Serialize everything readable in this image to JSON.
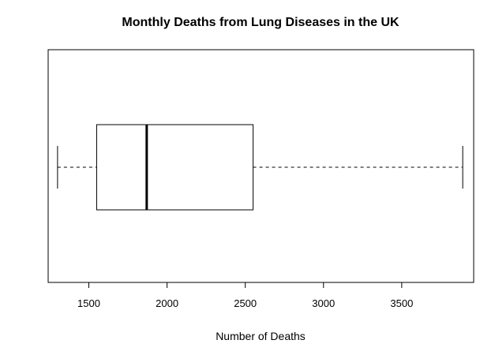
{
  "chart_data": {
    "type": "box",
    "orientation": "horizontal",
    "title": "Monthly Deaths from Lung Diseases in the UK",
    "xlabel": "Number of Deaths",
    "ylabel": "",
    "xlim": [
      1240,
      3960
    ],
    "x_ticks": [
      1500,
      2000,
      2500,
      3000,
      3500
    ],
    "x_tick_labels": [
      "1500",
      "2000",
      "2500",
      "3000",
      "3500"
    ],
    "grid": false,
    "legend": "none",
    "series": [
      {
        "whisker_low": 1300,
        "q1": 1550,
        "median": 1870,
        "q3": 2550,
        "whisker_high": 3890
      }
    ],
    "colors": {
      "box_fill": "#ffffff",
      "stroke": "#000000"
    }
  }
}
